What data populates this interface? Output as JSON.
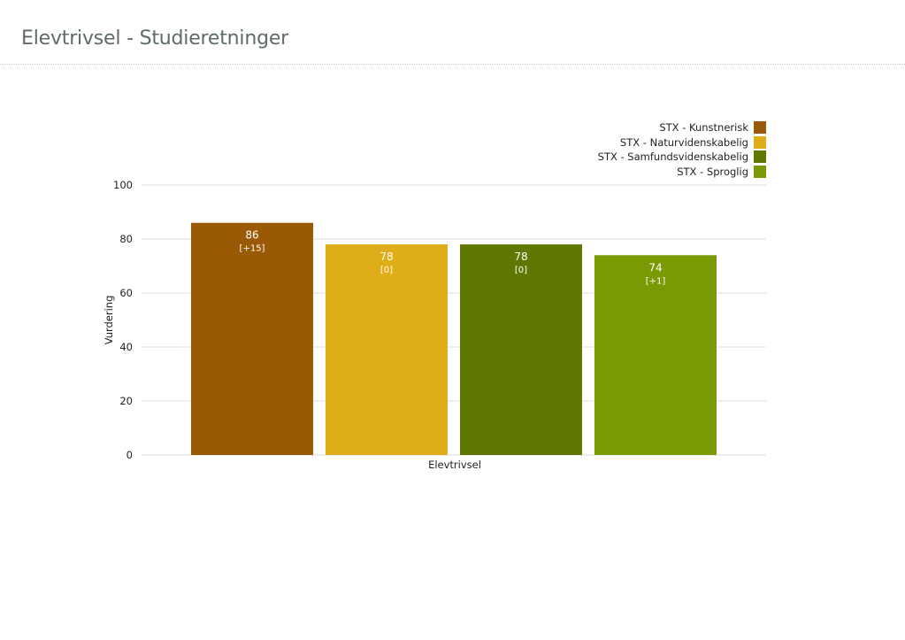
{
  "page": {
    "title": "Elevtrivsel - Studieretninger"
  },
  "chart_data": {
    "type": "bar",
    "categories": [
      "Elevtrivsel"
    ],
    "series": [
      {
        "name": "STX - Kunstnerisk",
        "values": [
          86
        ],
        "change": "[+15]",
        "color": "#9a5a05"
      },
      {
        "name": "STX - Naturvidenskabelig",
        "values": [
          78
        ],
        "change": "[0]",
        "color": "#dfad17"
      },
      {
        "name": "STX - Samfundsvidenskabelig",
        "values": [
          78
        ],
        "change": "[0]",
        "color": "#5f7802"
      },
      {
        "name": "STX - Sproglig",
        "values": [
          74
        ],
        "change": "[+1]",
        "color": "#7a9a05"
      }
    ],
    "xlabel": "Elevtrivsel",
    "ylabel": "Vurdering",
    "ylim": [
      0,
      100
    ],
    "yticks": [
      0,
      20,
      40,
      60,
      80,
      100
    ],
    "grid": true,
    "legend_position": "top-right"
  }
}
